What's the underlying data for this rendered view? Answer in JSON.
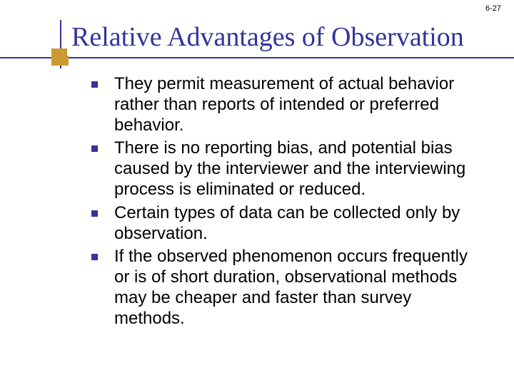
{
  "page_number": "6-27",
  "colors": {
    "accent_blue": "#333399",
    "accent_gold": "#cc9933",
    "background": "#ffffff",
    "text": "#000000"
  },
  "title": {
    "text": "Relative Advantages of Observation",
    "font_family": "Times New Roman",
    "font_size_pt": 38,
    "color": "#333399"
  },
  "bullets": {
    "font_family": "Verdana",
    "font_size_pt": 24,
    "marker_shape": "square",
    "marker_color": "#333399",
    "items": [
      "They permit measurement of actual behavior rather than reports of intended or preferred behavior.",
      "There is no reporting bias, and potential bias caused by the interviewer and the interviewing process is eliminated or reduced.",
      "Certain types of data can be collected only by observation.",
      "If the observed phenomenon occurs frequently or is of short duration, observational methods may be cheaper and faster than survey methods."
    ]
  }
}
